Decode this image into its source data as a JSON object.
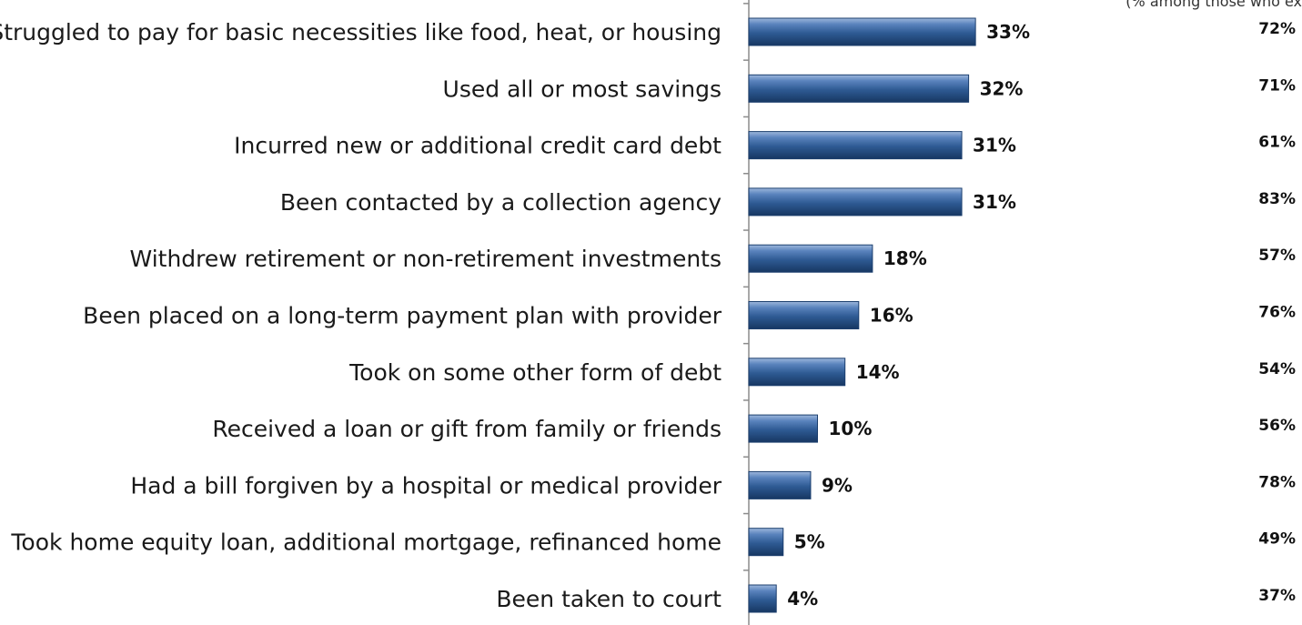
{
  "chart_data": {
    "type": "bar",
    "orientation": "horizontal",
    "categories": [
      "Struggled to pay for basic necessities like food, heat, or housing",
      "Used all or most savings",
      "Incurred new or additional credit card debt",
      "Been contacted by a collection agency",
      "Withdrew retirement or non-retirement investments",
      "Been placed on a long-term payment plan with provider",
      "Took on some other form of debt",
      "Received a loan or gift from family or friends",
      "Had a bill forgiven by a hospital or medical provider",
      "Took home equity loan, additional mortgage, refinanced home",
      "Been taken to court"
    ],
    "values": [
      33,
      32,
      31,
      31,
      18,
      16,
      14,
      10,
      9,
      5,
      4
    ],
    "value_labels": [
      "33%",
      "32%",
      "31%",
      "31%",
      "18%",
      "16%",
      "14%",
      "10%",
      "9%",
      "5%",
      "4%"
    ],
    "secondary_note": "(% among those who ex",
    "secondary_labels": [
      "72%",
      "71%",
      "61%",
      "83%",
      "57%",
      "76%",
      "54%",
      "56%",
      "78%",
      "49%",
      "37%"
    ],
    "bar_color": "#2E5A93",
    "grid": false,
    "xlim": [
      0,
      40
    ]
  }
}
